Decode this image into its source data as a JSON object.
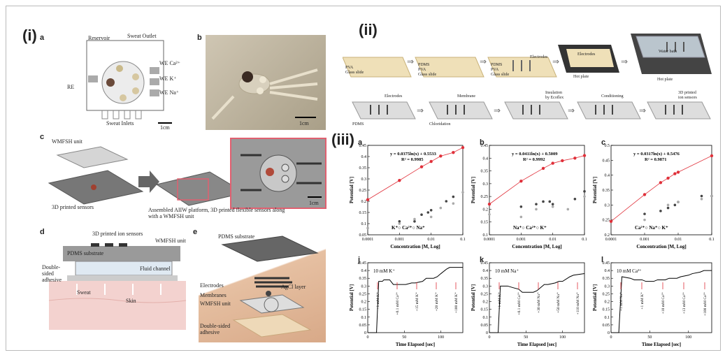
{
  "panels": {
    "i": "(i)",
    "ii": "(ii)",
    "iii": "(iii)"
  },
  "sub": {
    "a": "a",
    "b": "b",
    "c": "c",
    "d": "d",
    "e": "e",
    "ia": "a",
    "ib": "b",
    "ic": "c",
    "ij": "j",
    "ik": "k",
    "il": "l"
  },
  "fig_a": {
    "reservoir": "Reservoir",
    "sweat_outlet": "Sweat Outlet",
    "re": "RE",
    "we_ca": "WE Ca²⁺",
    "we_k": "WE K⁺",
    "we_na": "WE Na⁺",
    "sweat_inlets": "Sweat Inlets",
    "scale": "1cm"
  },
  "fig_b": {
    "scale": "1cm"
  },
  "fig_c": {
    "wmfsh": "WMFSH unit",
    "sensors": "3D printed sensors",
    "caption": "Assembled AIIW platform, 3D printed flexible sensors along with a WMFSH unit",
    "scale": "1cm"
  },
  "fig_d": {
    "ion_sensors": "3D printed ion sensors",
    "pdms": "PDMS substrate",
    "wmfsh": "WMFSH unit",
    "adhesive": "Double-sided adhesive",
    "fluid": "Fluid channel",
    "sweat": "Sweat",
    "skin": "Skin"
  },
  "fig_e": {
    "pdms": "PDMS substrate",
    "electrodes": "Electrodes",
    "agcl": "AgCl layer",
    "membranes": "Membranes",
    "wmfsh": "WMFSH unit",
    "adhesive": "Double-sided adhesive"
  },
  "fab": {
    "s1": "PVA\nGlass slide",
    "s2": "PDMS\nPVA\nGlass slide",
    "s3": "PDMS\nPVA\nGlass slide",
    "electrodes": "Electrodes",
    "electrodes2": "Electrodes",
    "hotplate": "Hot plate",
    "hotplate2": "Hot plate",
    "waterbath": "Water bath",
    "r_electrodes": "Electrodes",
    "membrane": "Membrane",
    "insulation": "Insulation\nby Ecoflex",
    "conditioning": "Conditioning",
    "printed": "3D printed\nion sensors",
    "pdms": "PDMS",
    "chloridation": "Chloridation"
  },
  "chart_data": [
    {
      "type": "scatter",
      "id": "a",
      "equation": "y = 0.0375ln(x) + 0.5533",
      "r2": "R² = 0.9985",
      "xlabel": "Concentration [M, Log]",
      "ylabel": "Potential [V]",
      "xscale": "log",
      "xlim": [
        0.0001,
        0.1
      ],
      "ylim": [
        0.05,
        0.45
      ],
      "xticks": [
        "0.0001",
        "0.001",
        "0.01",
        "0.1"
      ],
      "yticks": [
        "0.05",
        "0.1",
        "0.15",
        "0.2",
        "0.25",
        "0.3",
        "0.35",
        "0.4",
        "0.45"
      ],
      "legend": "K⁺○ Ca²⁺○ Na⁺",
      "series": [
        {
          "name": "K⁺",
          "color": "#e0303a",
          "x": [
            0.0001,
            0.001,
            0.005,
            0.01,
            0.02,
            0.05,
            0.1
          ],
          "y": [
            0.207,
            0.293,
            0.354,
            0.378,
            0.402,
            0.418,
            0.44
          ]
        },
        {
          "name": "Ca²⁺",
          "color": "#444444",
          "x": [
            0.001,
            0.003,
            0.005,
            0.008,
            0.01,
            0.03,
            0.05
          ],
          "y": [
            0.11,
            0.11,
            0.14,
            0.15,
            0.16,
            0.2,
            0.22
          ]
        },
        {
          "name": "Na⁺",
          "color": "#aaaaaa",
          "x": [
            0.0001,
            0.001,
            0.003,
            0.01,
            0.02,
            0.05,
            0.1
          ],
          "y": [
            0.08,
            0.1,
            0.12,
            0.13,
            0.17,
            0.19,
            0.24
          ]
        }
      ]
    },
    {
      "type": "scatter",
      "id": "b",
      "equation": "y = 0.0411ln(x) + 0.5009",
      "r2": "R² = 0.9992",
      "xlabel": "Concentration [M, Log]",
      "ylabel": "Potential [V]",
      "xscale": "log",
      "xlim": [
        0.0001,
        0.1
      ],
      "ylim": [
        0.1,
        0.45
      ],
      "xticks": [
        "0.0001",
        "0.001",
        "0.01",
        "0.1"
      ],
      "yticks": [
        "0.1",
        "0.15",
        "0.2",
        "0.25",
        "0.3",
        "0.35",
        "0.4",
        "0.45"
      ],
      "legend": "Na⁺○ Ca²⁺○ K⁺",
      "series": [
        {
          "name": "Na⁺",
          "color": "#e0303a",
          "x": [
            0.0001,
            0.001,
            0.005,
            0.01,
            0.02,
            0.05,
            0.1
          ],
          "y": [
            0.22,
            0.31,
            0.36,
            0.38,
            0.39,
            0.4,
            0.41
          ]
        },
        {
          "name": "Ca²⁺",
          "color": "#444444",
          "x": [
            0.001,
            0.003,
            0.005,
            0.008,
            0.01,
            0.05,
            0.1
          ],
          "y": [
            0.21,
            0.22,
            0.23,
            0.23,
            0.22,
            0.24,
            0.27
          ]
        },
        {
          "name": "K⁺",
          "color": "#aaaaaa",
          "x": [
            0.0001,
            0.001,
            0.003,
            0.01,
            0.03,
            0.1
          ],
          "y": [
            0.18,
            0.17,
            0.2,
            0.21,
            0.2,
            0.25
          ]
        }
      ]
    },
    {
      "type": "scatter",
      "id": "c",
      "equation": "y = 0.0317ln(x) + 0.5476",
      "r2": "R² = 0.9871",
      "xlabel": "Concentration [M, Log]",
      "ylabel": "Potential [V]",
      "xscale": "log",
      "xlim": [
        0.0001,
        0.1
      ],
      "ylim": [
        0.2,
        0.5
      ],
      "xticks": [
        "0.0001",
        "0.001",
        "0.01",
        "0.1"
      ],
      "yticks": [
        "0.2",
        "0.25",
        "0.3",
        "0.35",
        "0.4",
        "0.45",
        "0.5"
      ],
      "legend": "Ca²⁺○ Na⁺○ K⁺",
      "series": [
        {
          "name": "Ca²⁺",
          "color": "#e0303a",
          "x": [
            0.0001,
            0.001,
            0.003,
            0.005,
            0.008,
            0.01,
            0.1
          ],
          "y": [
            0.245,
            0.335,
            0.375,
            0.39,
            0.405,
            0.41,
            0.465
          ]
        },
        {
          "name": "Na⁺",
          "color": "#444444",
          "x": [
            0.001,
            0.003,
            0.005,
            0.008,
            0.01,
            0.05,
            0.1
          ],
          "y": [
            0.27,
            0.28,
            0.29,
            0.3,
            0.31,
            0.33,
            0.33
          ]
        },
        {
          "name": "K⁺",
          "color": "#aaaaaa",
          "x": [
            0.001,
            0.005,
            0.01,
            0.05,
            0.1
          ],
          "y": [
            0.25,
            0.3,
            0.31,
            0.32,
            0.33
          ]
        }
      ]
    },
    {
      "type": "line",
      "id": "j",
      "note": "10 mM K⁺",
      "xlabel": "Time Elapsed [sec]",
      "ylabel": "Potential [V]",
      "xlim": [
        0,
        130
      ],
      "ylim": [
        0,
        0.45
      ],
      "xticks": [
        "0",
        "50",
        "100"
      ],
      "yticks": [
        "0",
        "0.05",
        "0.1",
        "0.15",
        "0.2",
        "0.25",
        "0.3",
        "0.35",
        "0.4",
        "0.45"
      ],
      "annotations": [
        "+1 mM K⁺",
        "+0.1 mM Ca²⁺",
        "+15 mM K⁺",
        "+20 mM K⁺",
        "+100 mM K⁺"
      ],
      "x": [
        0,
        12,
        15,
        20,
        22,
        30,
        35,
        40,
        45,
        52,
        60,
        65,
        75,
        80,
        90,
        95,
        100,
        108,
        112,
        130
      ],
      "y": [
        0,
        0,
        0.33,
        0.33,
        0.34,
        0.34,
        0.31,
        0.31,
        0.31,
        0.31,
        0.32,
        0.32,
        0.33,
        0.35,
        0.35,
        0.36,
        0.38,
        0.41,
        0.42,
        0.42
      ]
    },
    {
      "type": "line",
      "id": "k",
      "note": "10 mM Na⁺",
      "xlabel": "Time Elapsed [sec]",
      "ylabel": "Potential [V]",
      "xlim": [
        0,
        130
      ],
      "ylim": [
        0,
        0.45
      ],
      "xticks": [
        "0",
        "50",
        "100"
      ],
      "yticks": [
        "0",
        "0.05",
        "0.1",
        "0.15",
        "0.2",
        "0.25",
        "0.3",
        "0.35",
        "0.4",
        "0.45"
      ],
      "annotations": [
        "+1 mM K⁺",
        "+0.1 mM Ca²⁺",
        "+30 mM Na⁺",
        "+50 mM Na⁺",
        "+110 mM Na⁺"
      ],
      "x": [
        0,
        12,
        15,
        25,
        32,
        40,
        45,
        52,
        60,
        65,
        75,
        80,
        90,
        95,
        100,
        110,
        115,
        130
      ],
      "y": [
        0,
        0,
        0.3,
        0.3,
        0.29,
        0.28,
        0.26,
        0.26,
        0.26,
        0.27,
        0.31,
        0.31,
        0.32,
        0.33,
        0.33,
        0.36,
        0.37,
        0.38
      ]
    },
    {
      "type": "line",
      "id": "l",
      "note": "10 mM Ca²⁺",
      "xlabel": "Time Elapsed [sec]",
      "ylabel": "Potential [V]",
      "xlim": [
        0,
        130
      ],
      "ylim": [
        0,
        0.45
      ],
      "xticks": [
        "0",
        "50",
        "100"
      ],
      "yticks": [
        "0",
        "0.05",
        "0.1",
        "0.15",
        "0.2",
        "0.25",
        "0.3",
        "0.35",
        "0.4",
        "0.45"
      ],
      "annotations": [
        "+1 mM Na⁺",
        "+1 mM K⁺",
        "+10 mM Ca²⁺",
        "+13 mM Ca²⁺",
        "+100 mM Ca²⁺"
      ],
      "x": [
        0,
        10,
        14,
        25,
        30,
        40,
        45,
        55,
        60,
        70,
        75,
        85,
        90,
        100,
        105,
        115,
        120,
        130
      ],
      "y": [
        0,
        0,
        0.36,
        0.35,
        0.34,
        0.34,
        0.33,
        0.33,
        0.34,
        0.34,
        0.35,
        0.35,
        0.36,
        0.37,
        0.38,
        0.39,
        0.4,
        0.4
      ]
    }
  ]
}
